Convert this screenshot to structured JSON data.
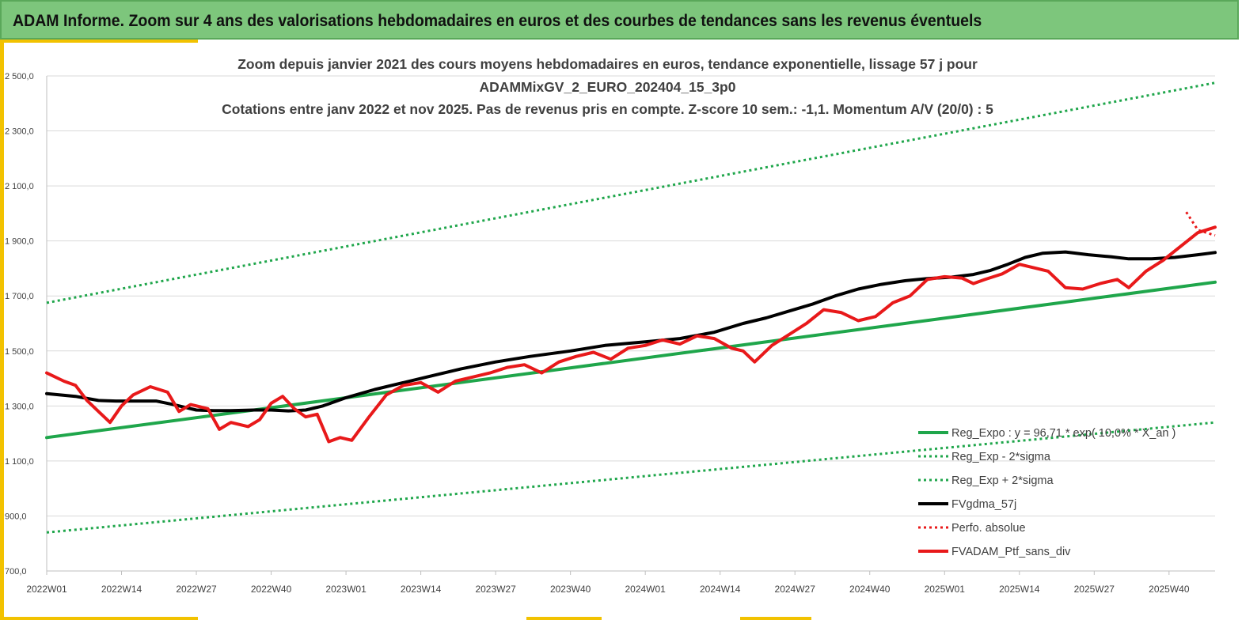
{
  "banner": {
    "title": "ADAM Informe. Zoom sur 4 ans des valorisations hebdomadaires en euros et des courbes de tendances sans les revenus éventuels"
  },
  "colors": {
    "banner_bg": "#7dc67c",
    "accent_gold": "#f2c200",
    "regression": "#1fa64b",
    "smoothed": "#000000",
    "portfolio": "#e8191a"
  },
  "chart_data": {
    "type": "line",
    "title_lines": [
      "Zoom depuis janvier 2021 des cours moyens hebdomadaires  en euros, tendance exponentielle, lissage 57 j pour",
      "ADAMMixGV_2_EURO_202404_15_3p0",
      "Cotations  entre janv 2022 et nov 2025. Pas de revenus pris en compte. Z-score 10 sem.: -1,1. Momentum A/V (20/0) : 5"
    ],
    "xlabel": "",
    "ylabel": "",
    "ylim": [
      700,
      2500
    ],
    "y_ticks": [
      "700,0",
      "900,0",
      "1 100,0",
      "1 300,0",
      "1 500,0",
      "1 700,0",
      "1 900,0",
      "2 100,0",
      "2 300,0",
      "2 500,0"
    ],
    "x_ticks": [
      "2022W01",
      "2022W14",
      "2022W27",
      "2022W40",
      "2023W01",
      "2023W14",
      "2023W27",
      "2023W40",
      "2024W01",
      "2024W14",
      "2024W27",
      "2024W40",
      "2025W01",
      "2025W14",
      "2025W27",
      "2025W40"
    ],
    "grid": "horizontal",
    "legend_position": "bottom-right",
    "x_unit": "weeks from 2022W01",
    "series": [
      {
        "name": "Reg_Expo : y = 96,71 * exp( 10,0% * X_an )",
        "style": "solid-green",
        "points": [
          [
            0,
            1185
          ],
          [
            203,
            1750
          ]
        ]
      },
      {
        "name": "Reg_Exp - 2*sigma",
        "style": "dotted-green",
        "points": [
          [
            0,
            840
          ],
          [
            203,
            1240
          ]
        ]
      },
      {
        "name": "Reg_Exp + 2*sigma",
        "style": "dotted-green",
        "points": [
          [
            0,
            1675
          ],
          [
            203,
            2475
          ]
        ]
      },
      {
        "name": "FVgdma_57j",
        "style": "solid-black",
        "points": [
          [
            0,
            1345
          ],
          [
            5,
            1335
          ],
          [
            9,
            1320
          ],
          [
            12,
            1318
          ],
          [
            15,
            1318
          ],
          [
            19,
            1318
          ],
          [
            22,
            1305
          ],
          [
            24,
            1295
          ],
          [
            26,
            1285
          ],
          [
            29,
            1283
          ],
          [
            32,
            1283
          ],
          [
            36,
            1285
          ],
          [
            39,
            1285
          ],
          [
            42,
            1282
          ],
          [
            45,
            1285
          ],
          [
            48,
            1300
          ],
          [
            52,
            1330
          ],
          [
            57,
            1360
          ],
          [
            62,
            1385
          ],
          [
            67,
            1410
          ],
          [
            72,
            1435
          ],
          [
            78,
            1460
          ],
          [
            84,
            1480
          ],
          [
            91,
            1500
          ],
          [
            97,
            1520
          ],
          [
            104,
            1533
          ],
          [
            110,
            1545
          ],
          [
            116,
            1568
          ],
          [
            121,
            1600
          ],
          [
            125,
            1620
          ],
          [
            129,
            1645
          ],
          [
            133,
            1670
          ],
          [
            137,
            1700
          ],
          [
            141,
            1725
          ],
          [
            145,
            1742
          ],
          [
            149,
            1755
          ],
          [
            153,
            1763
          ],
          [
            157,
            1768
          ],
          [
            161,
            1778
          ],
          [
            164,
            1793
          ],
          [
            167,
            1815
          ],
          [
            170,
            1840
          ],
          [
            173,
            1855
          ],
          [
            177,
            1860
          ],
          [
            181,
            1850
          ],
          [
            185,
            1842
          ],
          [
            188,
            1835
          ],
          [
            192,
            1835
          ],
          [
            196,
            1840
          ],
          [
            200,
            1850
          ],
          [
            203,
            1858
          ]
        ]
      },
      {
        "name": "Perfo. absolue",
        "style": "dotted-red",
        "points": [
          [
            198,
            2005
          ],
          [
            200,
            1940
          ],
          [
            203,
            1920
          ]
        ]
      },
      {
        "name": "FVADAM_Ptf_sans_div",
        "style": "solid-red",
        "points": [
          [
            0,
            1420
          ],
          [
            3,
            1390
          ],
          [
            5,
            1375
          ],
          [
            7,
            1320
          ],
          [
            9,
            1280
          ],
          [
            11,
            1240
          ],
          [
            13,
            1300
          ],
          [
            15,
            1340
          ],
          [
            18,
            1370
          ],
          [
            21,
            1350
          ],
          [
            23,
            1280
          ],
          [
            25,
            1305
          ],
          [
            28,
            1290
          ],
          [
            30,
            1215
          ],
          [
            32,
            1240
          ],
          [
            35,
            1225
          ],
          [
            37,
            1250
          ],
          [
            39,
            1310
          ],
          [
            41,
            1335
          ],
          [
            43,
            1290
          ],
          [
            45,
            1260
          ],
          [
            47,
            1270
          ],
          [
            49,
            1170
          ],
          [
            51,
            1185
          ],
          [
            53,
            1175
          ],
          [
            56,
            1260
          ],
          [
            59,
            1340
          ],
          [
            62,
            1375
          ],
          [
            65,
            1385
          ],
          [
            68,
            1350
          ],
          [
            71,
            1390
          ],
          [
            74,
            1405
          ],
          [
            77,
            1420
          ],
          [
            80,
            1440
          ],
          [
            83,
            1450
          ],
          [
            86,
            1420
          ],
          [
            89,
            1460
          ],
          [
            92,
            1480
          ],
          [
            95,
            1495
          ],
          [
            98,
            1470
          ],
          [
            101,
            1510
          ],
          [
            104,
            1520
          ],
          [
            107,
            1540
          ],
          [
            110,
            1525
          ],
          [
            113,
            1555
          ],
          [
            116,
            1545
          ],
          [
            119,
            1510
          ],
          [
            121,
            1500
          ],
          [
            123,
            1460
          ],
          [
            126,
            1520
          ],
          [
            129,
            1560
          ],
          [
            132,
            1600
          ],
          [
            135,
            1650
          ],
          [
            138,
            1640
          ],
          [
            141,
            1610
          ],
          [
            144,
            1625
          ],
          [
            147,
            1675
          ],
          [
            150,
            1700
          ],
          [
            153,
            1760
          ],
          [
            156,
            1770
          ],
          [
            159,
            1765
          ],
          [
            161,
            1745
          ],
          [
            163,
            1760
          ],
          [
            166,
            1780
          ],
          [
            169,
            1815
          ],
          [
            172,
            1800
          ],
          [
            174,
            1790
          ],
          [
            177,
            1730
          ],
          [
            180,
            1725
          ],
          [
            183,
            1745
          ],
          [
            186,
            1760
          ],
          [
            188,
            1730
          ],
          [
            191,
            1790
          ],
          [
            194,
            1830
          ],
          [
            197,
            1880
          ],
          [
            200,
            1930
          ],
          [
            203,
            1950
          ]
        ]
      }
    ]
  }
}
